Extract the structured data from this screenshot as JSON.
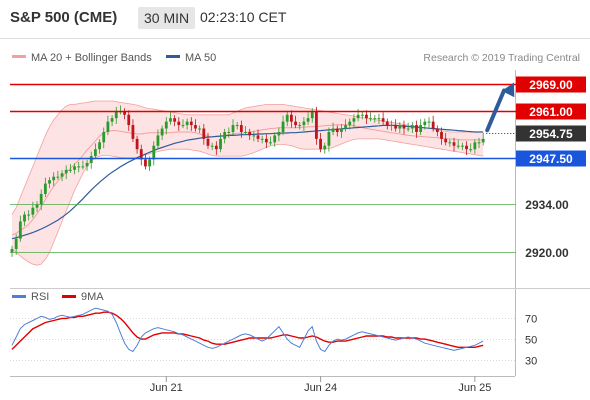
{
  "header": {
    "symbol": "S&P 500 (CME)",
    "timeframe": "30 MIN",
    "time": "02:23:10 CET"
  },
  "copyright": "Research © 2019 Trading Central",
  "colors": {
    "bollinger": "#f4a0a0",
    "band_fill": "#fde3e3",
    "ma50": "#2e5b9a",
    "resistance": "#e00000",
    "support": "#1a56db",
    "pivot": "#4aa84a",
    "candle_up": "#2a9a2a",
    "candle_down": "#c0141c",
    "rsi": "#4f7fd6",
    "rsi_ma": "#e00000",
    "arrow": "#2e5b9a",
    "last_price": "#333333"
  },
  "chart_data": [
    {
      "type": "candlestick",
      "legend": [
        {
          "name": "MA 20 + Bollinger Bands",
          "color": "#f4a0a0"
        },
        {
          "name": "MA 50",
          "color": "#2e5b9a"
        }
      ],
      "ylim": [
        2912,
        2973
      ],
      "x_ticks": [
        {
          "index": 37,
          "label": "Jun 21"
        },
        {
          "index": 74,
          "label": "Jun 24"
        },
        {
          "index": 111,
          "label": "Jun 25"
        }
      ],
      "levels": [
        {
          "value": 2969.0,
          "label": "2969.00",
          "kind": "resistance"
        },
        {
          "value": 2961.0,
          "label": "2961.00",
          "kind": "resistance"
        },
        {
          "value": 2947.5,
          "label": "2947.50",
          "kind": "support"
        },
        {
          "value": 2934.0,
          "label": "2934.00",
          "kind": "pivot"
        },
        {
          "value": 2920.0,
          "label": "2920.00",
          "kind": "pivot"
        }
      ],
      "last_price": {
        "value": 2954.75,
        "label": "2954.75"
      },
      "forecast_arrow": {
        "from_value": 2955.5,
        "to_value": 2968.5
      },
      "close": [
        2921,
        2924,
        2929,
        2931,
        2931,
        2933,
        2934,
        2937,
        2940,
        2941,
        2942,
        2942,
        2943,
        2944,
        2944,
        2945,
        2945,
        2945,
        2946,
        2948,
        2950,
        2952,
        2955,
        2958,
        2959,
        2961,
        2961,
        2960,
        2957,
        2953,
        2950,
        2947,
        2945,
        2947,
        2951,
        2954,
        2956,
        2958,
        2959,
        2958,
        2957,
        2957,
        2958,
        2957,
        2956,
        2956,
        2953,
        2951,
        2951,
        2950,
        2953,
        2955,
        2955,
        2957,
        2957,
        2955,
        2955,
        2954,
        2954,
        2953,
        2953,
        2952,
        2952,
        2954,
        2955,
        2958,
        2960,
        2958,
        2957,
        2957,
        2958,
        2959,
        2961,
        2953,
        2950,
        2951,
        2955,
        2956,
        2955,
        2956,
        2957,
        2958,
        2959,
        2960,
        2960,
        2959,
        2959,
        2959,
        2959,
        2958,
        2957,
        2957,
        2956,
        2957,
        2956,
        2956,
        2957,
        2955,
        2957,
        2958,
        2958,
        2956,
        2955,
        2953,
        2952,
        2952,
        2951,
        2951,
        2951,
        2950,
        2950,
        2952,
        2952,
        2953
      ],
      "ma20": [
        2925.0,
        2925.6,
        2926.4,
        2927.2,
        2928.2,
        2929.6,
        2931.2,
        2933.2,
        2935.4,
        2937.4,
        2939.2,
        2940.8,
        2942.0,
        2943.2,
        2944.4,
        2945.6,
        2946.8,
        2948.2,
        2949.8,
        2951.0,
        2952.4,
        2953.8,
        2954.8,
        2955.2,
        2955.4,
        2955.4,
        2955.2,
        2955.0,
        2954.8,
        2954.6,
        2954.4,
        2954.4,
        2954.6,
        2954.8,
        2954.8,
        2954.8,
        2954.8,
        2954.8,
        2954.8,
        2954.9,
        2955.0,
        2955.0,
        2955.0,
        2955.0,
        2954.8,
        2954.4,
        2954.0,
        2953.8,
        2953.6,
        2953.6,
        2953.8,
        2954.0,
        2954.2,
        2954.4,
        2954.6,
        2954.6,
        2954.8,
        2955.0,
        2955.2,
        2955.4,
        2955.6,
        2955.8,
        2956.0,
        2956.1,
        2956.2,
        2956.2,
        2956.2,
        2956.2,
        2956.2,
        2956.3,
        2956.4,
        2956.5,
        2956.5,
        2956.6,
        2956.7,
        2956.8,
        2956.9,
        2957.0,
        2957.1,
        2957.1,
        2957.1,
        2957.0,
        2956.8,
        2956.6,
        2956.3,
        2956.0,
        2955.8,
        2955.6,
        2955.4,
        2955.2,
        2955.0,
        2954.8,
        2954.6,
        2954.4,
        2954.2,
        2954.0,
        2953.9,
        2953.8,
        2953.7,
        2953.6,
        2953.5,
        2953.4,
        2953.3,
        2953.2,
        2953.1,
        2953.0,
        2952.9,
        2952.8,
        2952.7,
        2952.7,
        2952.7,
        2952.7,
        2952.7,
        2952.7
      ],
      "bb_upper": [
        2931.0,
        2933.0,
        2936.0,
        2939.0,
        2942.0,
        2945.0,
        2948.0,
        2951.0,
        2954.0,
        2956.5,
        2958.5,
        2960.0,
        2961.5,
        2962.5,
        2963.0,
        2963.0,
        2963.2,
        2963.4,
        2963.6,
        2963.8,
        2964.0,
        2964.0,
        2964.0,
        2964.0,
        2964.0,
        2963.8,
        2963.6,
        2963.4,
        2963.2,
        2963.0,
        2962.8,
        2962.4,
        2962.0,
        2961.8,
        2961.6,
        2961.4,
        2961.2,
        2961.0,
        2960.8,
        2960.6,
        2960.4,
        2960.2,
        2960.0,
        2960.0,
        2960.0,
        2960.0,
        2960.0,
        2960.0,
        2960.0,
        2960.0,
        2960.0,
        2960.0,
        2960.0,
        2960.5,
        2961.0,
        2961.5,
        2962.0,
        2962.2,
        2962.4,
        2962.6,
        2962.8,
        2963.0,
        2963.0,
        2963.0,
        2963.0,
        2963.0,
        2962.8,
        2962.6,
        2962.4,
        2962.2,
        2962.0,
        2961.8,
        2961.6,
        2961.4,
        2961.2,
        2961.0,
        2960.8,
        2960.6,
        2960.4,
        2960.2,
        2960.0,
        2959.8,
        2959.6,
        2959.4,
        2959.2,
        2959.0,
        2958.8,
        2958.6,
        2958.4,
        2958.2,
        2958.0,
        2957.8,
        2957.6,
        2957.4,
        2957.2,
        2957.0,
        2956.8,
        2956.6,
        2956.4,
        2956.2,
        2956.0,
        2955.8,
        2955.6,
        2955.4,
        2955.2,
        2955.0,
        2955.0,
        2955.0,
        2955.0,
        2955.0,
        2955.0,
        2955.0,
        2955.0,
        2955.0
      ],
      "bb_lower": [
        2921.0,
        2920.0,
        2919.0,
        2918.0,
        2917.2,
        2916.6,
        2916.3,
        2916.6,
        2918.0,
        2920.0,
        2923.0,
        2926.0,
        2929.0,
        2932.0,
        2935.0,
        2938.0,
        2940.5,
        2943.0,
        2945.0,
        2946.5,
        2947.5,
        2948.0,
        2948.2,
        2948.2,
        2948.0,
        2947.8,
        2947.6,
        2947.5,
        2947.5,
        2947.5,
        2947.7,
        2948.0,
        2948.3,
        2948.6,
        2949.0,
        2949.3,
        2949.6,
        2949.8,
        2950.0,
        2950.0,
        2950.0,
        2950.0,
        2950.0,
        2949.8,
        2949.6,
        2949.4,
        2949.0,
        2948.6,
        2948.2,
        2948.0,
        2948.0,
        2948.0,
        2948.0,
        2948.0,
        2948.0,
        2948.0,
        2948.2,
        2948.6,
        2949.0,
        2949.5,
        2950.0,
        2950.5,
        2951.0,
        2951.2,
        2951.4,
        2951.4,
        2951.2,
        2951.0,
        2950.6,
        2950.2,
        2950.0,
        2950.0,
        2950.0,
        2950.0,
        2950.0,
        2950.0,
        2950.2,
        2950.5,
        2951.0,
        2951.5,
        2952.0,
        2952.5,
        2952.8,
        2953.0,
        2953.0,
        2953.0,
        2953.0,
        2953.0,
        2953.0,
        2952.8,
        2952.6,
        2952.4,
        2952.2,
        2952.0,
        2951.8,
        2951.6,
        2951.4,
        2951.2,
        2951.0,
        2950.8,
        2950.6,
        2950.4,
        2950.2,
        2950.0,
        2949.8,
        2949.6,
        2949.4,
        2949.2,
        2949.0,
        2948.8,
        2948.6,
        2948.4,
        2948.2,
        2948.0
      ],
      "ma50": [
        2924.0,
        2924.3,
        2924.6,
        2925.0,
        2925.4,
        2925.8,
        2926.3,
        2926.8,
        2927.4,
        2928.0,
        2928.7,
        2929.4,
        2930.2,
        2931.1,
        2932.1,
        2933.2,
        2934.4,
        2935.6,
        2936.9,
        2938.1,
        2939.3,
        2940.4,
        2941.4,
        2942.4,
        2943.3,
        2944.1,
        2944.9,
        2945.6,
        2946.3,
        2946.9,
        2947.5,
        2948.1,
        2948.6,
        2949.1,
        2949.6,
        2950.1,
        2950.5,
        2950.9,
        2951.3,
        2951.7,
        2952.0,
        2952.3,
        2952.6,
        2952.8,
        2953.0,
        2953.2,
        2953.4,
        2953.5,
        2953.6,
        2953.7,
        2953.8,
        2953.9,
        2954.0,
        2954.0,
        2954.1,
        2954.2,
        2954.2,
        2954.3,
        2954.3,
        2954.4,
        2954.4,
        2954.5,
        2954.5,
        2954.6,
        2954.6,
        2954.7,
        2954.7,
        2954.8,
        2954.8,
        2954.9,
        2955.0,
        2955.1,
        2955.2,
        2955.3,
        2955.4,
        2955.5,
        2955.6,
        2955.7,
        2955.8,
        2955.9,
        2956.0,
        2956.1,
        2956.2,
        2956.3,
        2956.4,
        2956.5,
        2956.6,
        2956.7,
        2956.8,
        2956.9,
        2956.9,
        2956.9,
        2956.9,
        2956.8,
        2956.7,
        2956.6,
        2956.5,
        2956.4,
        2956.3,
        2956.2,
        2956.1,
        2956.0,
        2955.9,
        2955.8,
        2955.7,
        2955.6,
        2955.5,
        2955.4,
        2955.3,
        2955.2,
        2955.1,
        2955.0,
        2955.0,
        2955.0
      ]
    },
    {
      "type": "line",
      "legend": [
        {
          "name": "RSI",
          "color": "#4f7fd6"
        },
        {
          "name": "9MA",
          "color": "#e00000"
        }
      ],
      "ylim": [
        22,
        82
      ],
      "y_ticks": [
        70,
        50,
        30
      ],
      "rsi": [
        44,
        52,
        60,
        64,
        66,
        68,
        70,
        72,
        71,
        69,
        70,
        72,
        73,
        72,
        71,
        72,
        73,
        74,
        76,
        78,
        80,
        79,
        78,
        77,
        74,
        66,
        56,
        46,
        40,
        38,
        44,
        52,
        56,
        58,
        60,
        61,
        60,
        59,
        58,
        57,
        55,
        54,
        52,
        50,
        48,
        46,
        44,
        42,
        41,
        42,
        44,
        46,
        48,
        50,
        52,
        54,
        55,
        54,
        52,
        50,
        48,
        50,
        54,
        58,
        62,
        56,
        50,
        46,
        44,
        42,
        50,
        58,
        62,
        48,
        40,
        38,
        44,
        48,
        50,
        49,
        50,
        52,
        54,
        56,
        57,
        56,
        55,
        54,
        53,
        52,
        51,
        50,
        49,
        50,
        51,
        52,
        51,
        50,
        48,
        46,
        45,
        44,
        43,
        42,
        41,
        40,
        39,
        40,
        41,
        42,
        43,
        44,
        46,
        48
      ],
      "rsi_ma": [
        40,
        44,
        48,
        52,
        56,
        60,
        62,
        64,
        66,
        67,
        68,
        69,
        70,
        70,
        71,
        71,
        72,
        72,
        73,
        74,
        75,
        75,
        76,
        76,
        75,
        73,
        70,
        66,
        61,
        56,
        52,
        50,
        50,
        52,
        54,
        55,
        56,
        56,
        56,
        56,
        55,
        55,
        54,
        53,
        52,
        51,
        49,
        48,
        46,
        45,
        45,
        45,
        46,
        47,
        48,
        49,
        50,
        51,
        51,
        51,
        51,
        51,
        51,
        52,
        53,
        54,
        54,
        53,
        52,
        51,
        51,
        52,
        53,
        52,
        50,
        48,
        47,
        47,
        48,
        48,
        48,
        49,
        50,
        51,
        52,
        53,
        53,
        53,
        53,
        53,
        52,
        52,
        51,
        51,
        51,
        51,
        51,
        51,
        50,
        50,
        49,
        48,
        47,
        46,
        45,
        44,
        43,
        42,
        42,
        42,
        42,
        42,
        43,
        44
      ]
    }
  ]
}
